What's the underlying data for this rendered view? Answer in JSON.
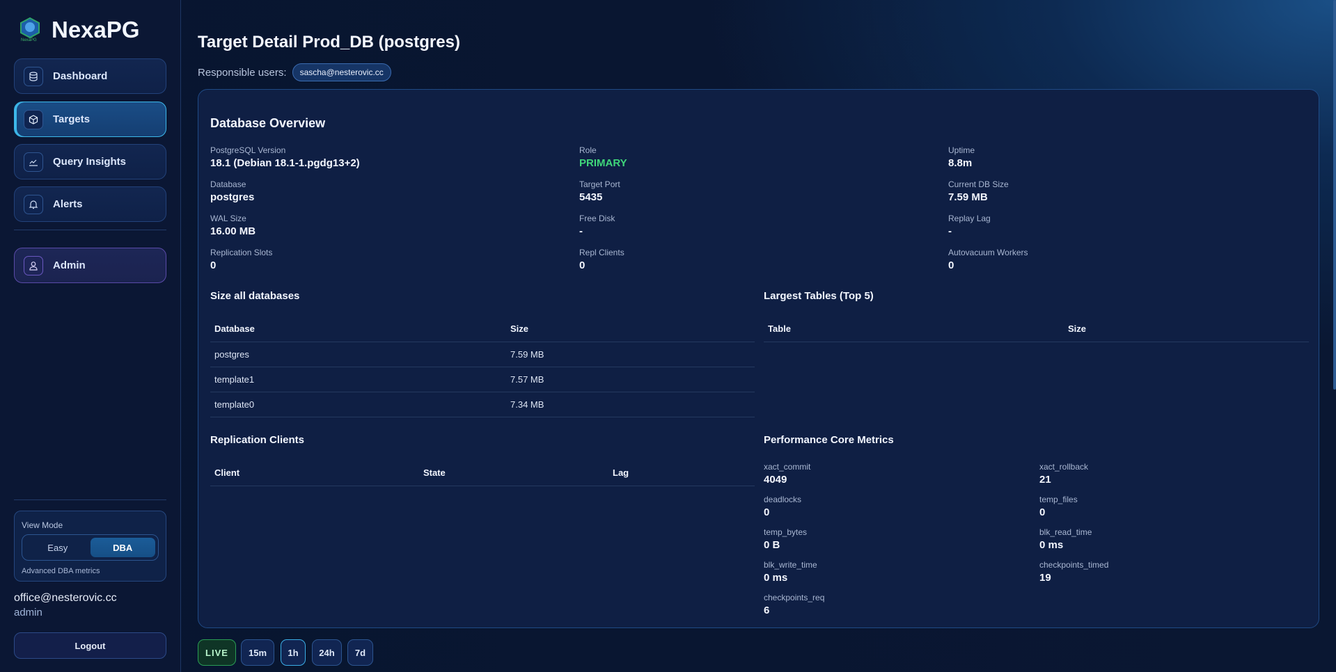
{
  "app": {
    "name": "NexaPG",
    "logo_text": "NexaPG"
  },
  "sidebar": {
    "items": [
      {
        "label": "Dashboard",
        "icon": "database-icon"
      },
      {
        "label": "Targets",
        "icon": "cube-icon",
        "active": true
      },
      {
        "label": "Query Insights",
        "icon": "chart-line-icon"
      },
      {
        "label": "Alerts",
        "icon": "bell-icon"
      }
    ],
    "admin": {
      "label": "Admin",
      "icon": "user-icon"
    },
    "view_mode": {
      "label": "View Mode",
      "options": [
        "Easy",
        "DBA"
      ],
      "selected": "DBA",
      "hint": "Advanced DBA metrics"
    },
    "user": {
      "email": "office@nesterovic.cc",
      "role": "admin"
    },
    "logout": "Logout"
  },
  "header": {
    "title": "Target Detail Prod_DB (postgres)",
    "responsible_label": "Responsible users:",
    "responsible_users": [
      "sascha@nesterovic.cc"
    ]
  },
  "overview": {
    "title": "Database Overview",
    "items": [
      {
        "label": "PostgreSQL Version",
        "value": "18.1 (Debian 18.1-1.pgdg13+2)"
      },
      {
        "label": "Role",
        "value": "PRIMARY"
      },
      {
        "label": "Uptime",
        "value": "8.8m"
      },
      {
        "label": "Database",
        "value": "postgres"
      },
      {
        "label": "Target Port",
        "value": "5435"
      },
      {
        "label": "Current DB Size",
        "value": "7.59 MB"
      },
      {
        "label": "WAL Size",
        "value": "16.00 MB"
      },
      {
        "label": "Free Disk",
        "value": "-"
      },
      {
        "label": "Replay Lag",
        "value": "-"
      },
      {
        "label": "Replication Slots",
        "value": "0"
      },
      {
        "label": "Repl Clients",
        "value": "0"
      },
      {
        "label": "Autovacuum Workers",
        "value": "0"
      }
    ],
    "role_color": "#3fd67a"
  },
  "size_all": {
    "title": "Size all databases",
    "columns": [
      "Database",
      "Size"
    ],
    "rows": [
      [
        "postgres",
        "7.59 MB"
      ],
      [
        "template1",
        "7.57 MB"
      ],
      [
        "template0",
        "7.34 MB"
      ]
    ]
  },
  "largest_tables": {
    "title": "Largest Tables (Top 5)",
    "columns": [
      "Table",
      "Size"
    ]
  },
  "replication": {
    "title": "Replication Clients",
    "columns": [
      "Client",
      "State",
      "Lag"
    ]
  },
  "performance": {
    "title": "Performance Core Metrics",
    "items": [
      {
        "label": "xact_commit",
        "value": "4049"
      },
      {
        "label": "xact_rollback",
        "value": "21"
      },
      {
        "label": "deadlocks",
        "value": "0"
      },
      {
        "label": "temp_files",
        "value": "0"
      },
      {
        "label": "temp_bytes",
        "value": "0 B"
      },
      {
        "label": "blk_read_time",
        "value": "0 ms"
      },
      {
        "label": "blk_write_time",
        "value": "0 ms"
      },
      {
        "label": "checkpoints_timed",
        "value": "19"
      },
      {
        "label": "checkpoints_req",
        "value": "6"
      }
    ]
  },
  "time_range": {
    "options": [
      "LIVE",
      "15m",
      "1h",
      "24h",
      "7d"
    ],
    "selected": "1h"
  }
}
